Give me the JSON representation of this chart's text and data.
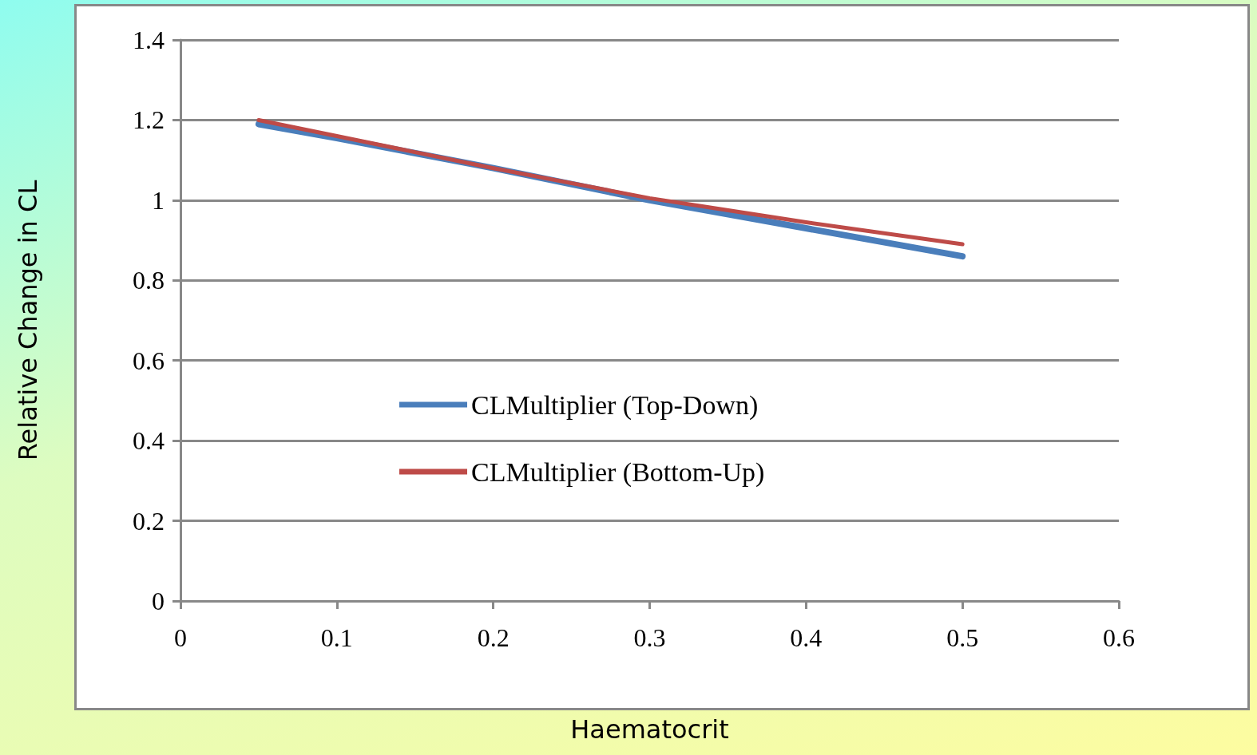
{
  "chart_data": {
    "type": "line",
    "xlabel": "Haematocrit",
    "ylabel": "Relative Change in CL",
    "x": [
      0.05,
      0.1,
      0.2,
      0.3,
      0.4,
      0.5
    ],
    "series": [
      {
        "name": "CLMultiplier (Top-Down)",
        "color": "#4a7ebb",
        "values": [
          1.19,
          1.155,
          1.08,
          1.0,
          0.93,
          0.86
        ]
      },
      {
        "name": "CLMultiplier (Bottom-Up)",
        "color": "#be4b48",
        "values": [
          1.2,
          1.16,
          1.08,
          1.005,
          0.945,
          0.89
        ]
      }
    ],
    "xlim": [
      0,
      0.6
    ],
    "xticks": [
      0,
      0.1,
      0.2,
      0.3,
      0.4,
      0.5,
      0.6
    ],
    "ylim": [
      0,
      1.4
    ],
    "yticks": [
      0,
      0.2,
      0.4,
      0.6,
      0.8,
      1,
      1.2,
      1.4
    ],
    "grid": "y",
    "legend": "left",
    "marker": "none",
    "line_style": "solid"
  }
}
